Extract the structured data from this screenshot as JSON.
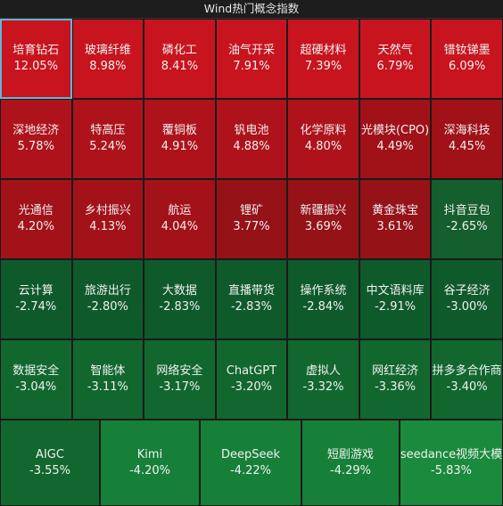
{
  "header": {
    "title": "Wind热门概念指数"
  },
  "colors": {
    "red_strong": "#c8141e",
    "red_medium": "#a51219",
    "red_dark": "#8e1217",
    "green_dark": "#0f5a2b",
    "green_medium": "#12672f",
    "green_bright": "#1a8a3c",
    "selected_outline": "#5fb6d8"
  },
  "rows": [
    [
      {
        "name": "培育钻石",
        "pct": "12.05%",
        "color": "#c8141e",
        "selected": true
      },
      {
        "name": "玻璃纤维",
        "pct": "8.98%",
        "color": "#c8141e"
      },
      {
        "name": "磷化工",
        "pct": "8.41%",
        "color": "#c8141e"
      },
      {
        "name": "油气开采",
        "pct": "7.91%",
        "color": "#c8141e"
      },
      {
        "name": "超硬材料",
        "pct": "7.39%",
        "color": "#c8141e"
      },
      {
        "name": "天然气",
        "pct": "6.79%",
        "color": "#c8141e"
      },
      {
        "name": "镨钕锑墨",
        "pct": "6.09%",
        "color": "#c8141e"
      }
    ],
    [
      {
        "name": "深地经济",
        "pct": "5.78%",
        "color": "#ae131b"
      },
      {
        "name": "特高压",
        "pct": "5.24%",
        "color": "#ae131b"
      },
      {
        "name": "覆铜板",
        "pct": "4.91%",
        "color": "#ae131b"
      },
      {
        "name": "钒电池",
        "pct": "4.88%",
        "color": "#ae131b"
      },
      {
        "name": "化学原料",
        "pct": "4.80%",
        "color": "#ae131b"
      },
      {
        "name": "光模块(CPO)",
        "pct": "4.49%",
        "color": "#a01218"
      },
      {
        "name": "深海科技",
        "pct": "4.45%",
        "color": "#a01218"
      }
    ],
    [
      {
        "name": "光通信",
        "pct": "4.20%",
        "color": "#a31219"
      },
      {
        "name": "乡村振兴",
        "pct": "4.13%",
        "color": "#a31219"
      },
      {
        "name": "航运",
        "pct": "4.04%",
        "color": "#a31219"
      },
      {
        "name": "锂矿",
        "pct": "3.77%",
        "color": "#951217"
      },
      {
        "name": "新疆振兴",
        "pct": "3.69%",
        "color": "#951217"
      },
      {
        "name": "黄金珠宝",
        "pct": "3.61%",
        "color": "#951217"
      },
      {
        "name": "抖音豆包",
        "pct": "-2.65%",
        "color": "#145f2d"
      }
    ],
    [
      {
        "name": "云计算",
        "pct": "-2.74%",
        "color": "#0f5a2b"
      },
      {
        "name": "旅游出行",
        "pct": "-2.80%",
        "color": "#0f5a2b"
      },
      {
        "name": "大数据",
        "pct": "-2.83%",
        "color": "#0f5a2b"
      },
      {
        "name": "直播带货",
        "pct": "-2.83%",
        "color": "#0f5a2b"
      },
      {
        "name": "操作系统",
        "pct": "-2.84%",
        "color": "#0f5a2b"
      },
      {
        "name": "中文语料库",
        "pct": "-2.91%",
        "color": "#0f5a2b"
      },
      {
        "name": "谷子经济",
        "pct": "-3.00%",
        "color": "#0f5a2b"
      }
    ],
    [
      {
        "name": "数据安全",
        "pct": "-3.04%",
        "color": "#12672f"
      },
      {
        "name": "智能体",
        "pct": "-3.11%",
        "color": "#12672f"
      },
      {
        "name": "网络安全",
        "pct": "-3.17%",
        "color": "#12672f"
      },
      {
        "name": "ChatGPT",
        "pct": "-3.20%",
        "color": "#12672f"
      },
      {
        "name": "虚拟人",
        "pct": "-3.32%",
        "color": "#12672f"
      },
      {
        "name": "网红经济",
        "pct": "-3.36%",
        "color": "#12672f"
      },
      {
        "name": "拼多多合作商",
        "pct": "-3.40%",
        "color": "#12672f"
      }
    ],
    [
      {
        "name": "AIGC",
        "pct": "-3.55%",
        "color": "#12672f"
      },
      {
        "name": "Kimi",
        "pct": "-4.20%",
        "color": "#168039"
      },
      {
        "name": "DeepSeek",
        "pct": "-4.22%",
        "color": "#168039"
      },
      {
        "name": "短剧游戏",
        "pct": "-4.29%",
        "color": "#168039"
      },
      {
        "name": "seedance视频大模",
        "pct": "-5.83%",
        "color": "#1a8a3c"
      }
    ]
  ]
}
